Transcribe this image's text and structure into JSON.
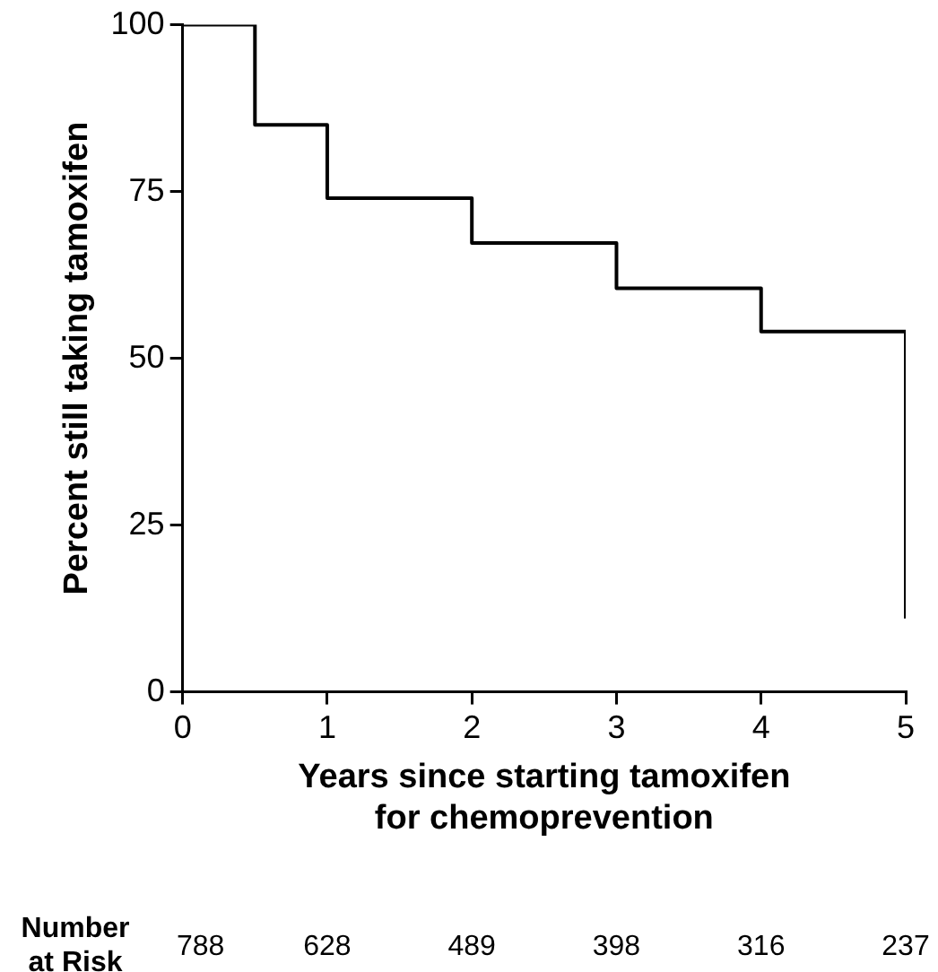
{
  "chart_data": {
    "type": "step",
    "xlabel": "Years since starting tamoxifen\nfor chemoprevention",
    "ylabel": "Percent still taking tamoxifen",
    "x": [
      0,
      0.5,
      1,
      2,
      3,
      4,
      5
    ],
    "series": [
      {
        "color": "#000000",
        "values": [
          100,
          85,
          74,
          67.3,
          60.5,
          54,
          11
        ]
      }
    ],
    "xlim": [
      0,
      5
    ],
    "xticks": [
      0,
      1,
      2,
      3,
      4,
      5
    ],
    "ylim": [
      0,
      100
    ],
    "yticks": [
      0,
      25,
      50,
      75,
      100
    ],
    "grid": false,
    "legend": false,
    "marker": "none",
    "line_style": "solid",
    "annotations": [
      "Number\nat Risk",
      "788",
      "628",
      "489",
      "398",
      "316",
      "237"
    ]
  }
}
